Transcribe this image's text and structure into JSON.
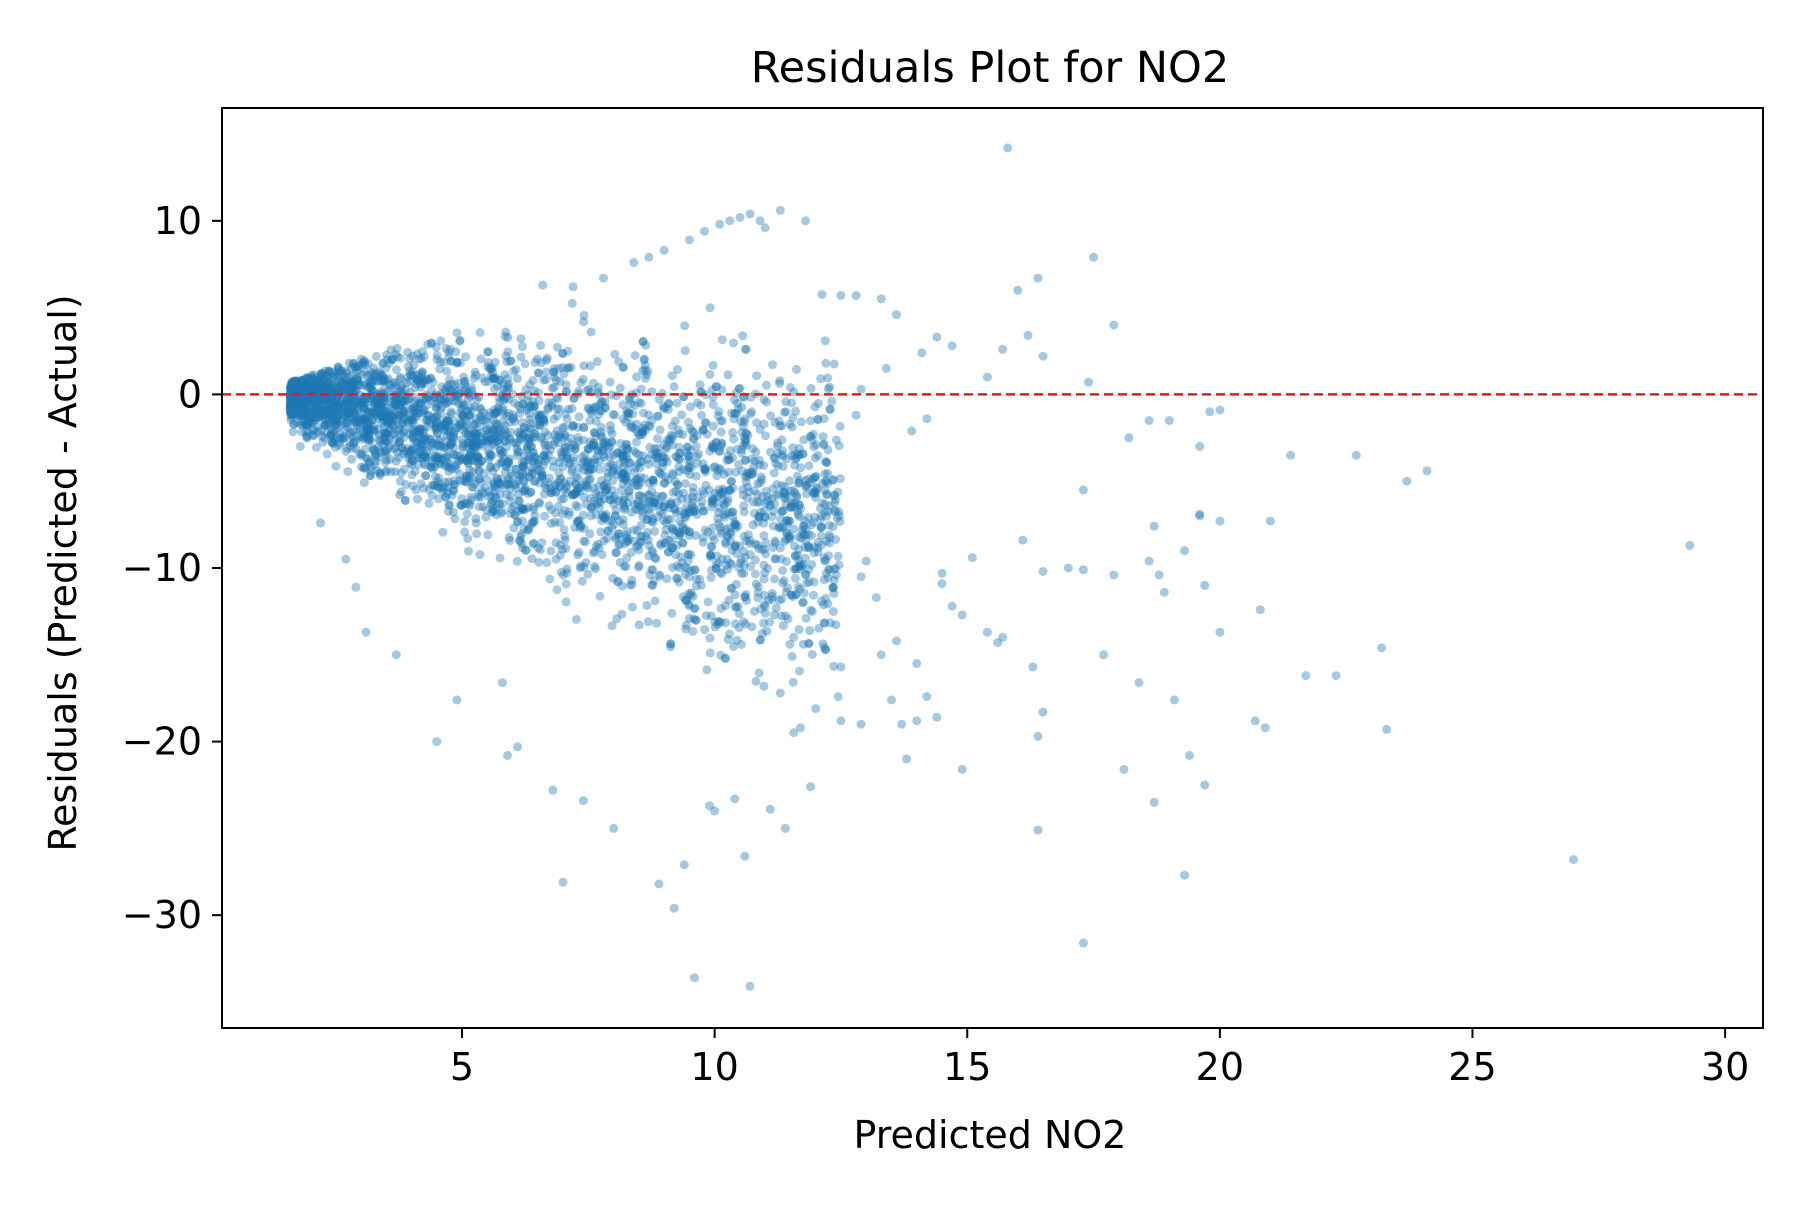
{
  "chart_data": {
    "type": "scatter",
    "title": "Residuals Plot for NO2",
    "xlabel": "Predicted NO2",
    "ylabel": "Residuals (Predicted - Actual)",
    "xlim": [
      0.25,
      30.75
    ],
    "ylim": [
      -36.5,
      16.5
    ],
    "xticks": [
      5,
      10,
      15,
      20,
      25,
      30
    ],
    "yticks": [
      10,
      0,
      -10,
      -20,
      -30
    ],
    "ytick_labels": [
      "10",
      "0",
      "−10",
      "−20",
      "−30"
    ],
    "grid": false,
    "legend": "none",
    "point_color": "#1f77b4",
    "point_alpha": 0.4,
    "reference_line": {
      "y": 0,
      "color": "#e41a1c",
      "style": "dashed"
    },
    "series": [
      {
        "x": [
          15.8,
          17.5,
          16.0,
          17.9,
          16.4,
          15.4,
          16.2,
          15.7,
          16.5,
          17.4,
          18.2,
          19.8,
          20.0,
          18.6,
          19.0,
          19.6,
          21.4,
          22.7,
          23.7,
          24.1,
          17.3,
          19.6,
          19.6,
          20.0,
          21.0,
          18.7,
          16.1,
          17.0,
          18.6,
          18.9,
          19.3,
          29.3,
          15.1,
          14.9,
          14.5,
          15.4,
          15.6,
          15.7,
          16.3,
          16.5,
          17.3,
          17.9,
          18.8,
          19.7,
          20.0,
          20.8,
          21.7,
          22.3,
          23.2,
          23.3,
          20.7,
          20.9,
          19.1,
          16.4,
          16.5,
          17.7,
          18.1,
          18.4,
          18.7,
          19.4,
          19.7,
          27.0,
          19.3,
          17.3,
          14.2,
          14.4,
          14.0,
          13.7,
          14.9,
          16.4,
          13.3,
          12.5,
          12.9,
          13.8,
          13.5,
          14.0,
          13.2,
          14.5,
          13.0,
          12.9,
          13.6,
          14.7,
          10.7,
          9.6,
          8.9,
          9.2,
          7.0,
          9.4,
          10.6,
          11.4,
          10.0,
          11.1,
          10.4,
          8.0,
          7.4,
          6.8,
          9.9,
          11.9,
          12.5,
          12.0,
          11.7,
          11.3,
          4.5,
          4.9,
          3.7,
          3.1,
          5.8,
          6.1,
          5.9,
          2.7,
          2.2,
          1.8,
          2.9,
          9.0,
          9.5,
          9.8,
          10.1,
          10.3,
          10.5,
          10.7,
          10.9,
          11.0,
          11.3,
          11.8,
          8.4,
          8.7,
          7.8,
          7.2,
          6.6,
          12.5,
          12.8,
          13.3,
          13.6,
          14.1,
          14.4,
          14.7,
          12.2,
          12.9,
          13.4,
          12.1,
          11.5,
          12.8,
          13.9,
          14.2
        ],
        "y": [
          14.2,
          7.9,
          6.0,
          4.0,
          6.7,
          1.0,
          3.4,
          2.6,
          2.2,
          0.7,
          -2.5,
          -1.0,
          -0.9,
          -1.5,
          -1.5,
          -3.0,
          -3.5,
          -3.5,
          -5.0,
          -4.4,
          -5.5,
          -6.9,
          -7.0,
          -7.3,
          -7.3,
          -7.6,
          -8.4,
          -10.0,
          -9.6,
          -11.4,
          -9.0,
          -8.7,
          -9.4,
          -12.7,
          -10.3,
          -13.7,
          -14.3,
          -14.0,
          -15.7,
          -10.2,
          -10.1,
          -10.4,
          -10.4,
          -11.0,
          -13.7,
          -12.4,
          -16.2,
          -16.2,
          -14.6,
          -19.3,
          -18.8,
          -19.2,
          -17.6,
          -19.7,
          -18.3,
          -15.0,
          -21.6,
          -16.6,
          -23.5,
          -20.8,
          -22.5,
          -26.8,
          -27.7,
          -31.6,
          -17.4,
          -18.6,
          -18.8,
          -19.0,
          -21.6,
          -25.1,
          -15.0,
          -15.7,
          -19.0,
          -21.0,
          -17.6,
          -15.5,
          -11.7,
          -10.9,
          -9.6,
          -10.5,
          -14.2,
          -12.2,
          -34.1,
          -33.6,
          -28.2,
          -29.6,
          -28.1,
          -27.1,
          -26.6,
          -25.0,
          -24.0,
          -23.9,
          -23.3,
          -25.0,
          -23.4,
          -22.8,
          -23.7,
          -22.6,
          -18.8,
          -18.1,
          -19.2,
          -17.2,
          -20.0,
          -17.6,
          -15.0,
          -13.7,
          -16.6,
          -20.3,
          -20.8,
          -9.5,
          -7.4,
          -3.0,
          -11.1,
          8.3,
          8.9,
          9.4,
          9.8,
          10.0,
          10.2,
          10.4,
          10.0,
          9.6,
          10.6,
          10.0,
          7.6,
          7.9,
          6.7,
          6.2,
          6.3,
          5.7,
          5.7,
          5.5,
          4.6,
          2.4,
          3.3,
          2.8,
          1.8,
          0.3,
          1.5,
          0.9,
          0.4,
          -1.2,
          -2.1,
          -1.4
        ]
      }
    ],
    "dense_cloud": {
      "description_free": true,
      "regions": [
        {
          "x": [
            1.6,
            12.5
          ],
          "y_center_at_x": [
            [
              1.6,
              0.0
            ],
            [
              4.0,
              -1.5
            ],
            [
              7.0,
              -4.0
            ],
            [
              10.0,
              -6.0
            ],
            [
              12.5,
              -7.0
            ]
          ],
          "spread_at_x": [
            [
              1.6,
              1.2
            ],
            [
              4.0,
              3.5
            ],
            [
              7.0,
              5.0
            ],
            [
              10.0,
              6.5
            ],
            [
              12.5,
              7.0
            ]
          ],
          "count": 3600
        }
      ]
    }
  }
}
